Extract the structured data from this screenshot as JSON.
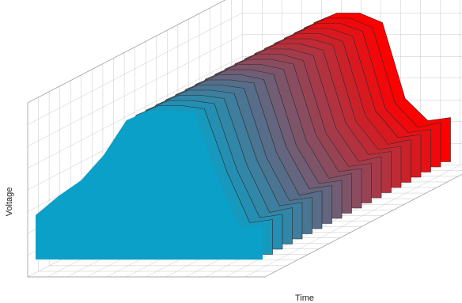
{
  "chart_data": {
    "type": "waterfall3d",
    "xlabel": "Time",
    "ylabel": "Voltage",
    "x": [
      0,
      10,
      20,
      30,
      40,
      50,
      60,
      70,
      80,
      90,
      100
    ],
    "xlim": [
      0,
      100
    ],
    "ylim": [
      0,
      5
    ],
    "series": [
      {
        "color": "#0aa0c8",
        "values": [
          1.4,
          2.0,
          2.5,
          3.3,
          4.4,
          4.7,
          4.7,
          4.65,
          2.6,
          1.0,
          1.1
        ]
      },
      {
        "color": "#1798bd",
        "values": [
          1.4,
          2.0,
          2.5,
          3.3,
          4.4,
          4.7,
          4.7,
          4.6,
          2.6,
          1.0,
          1.1
        ]
      },
      {
        "color": "#248fb3",
        "values": [
          1.4,
          2.0,
          2.5,
          3.3,
          4.4,
          4.7,
          4.7,
          4.6,
          2.5,
          1.0,
          1.1
        ]
      },
      {
        "color": "#3187a8",
        "values": [
          1.4,
          2.0,
          2.5,
          3.3,
          4.4,
          4.7,
          4.7,
          4.6,
          2.5,
          1.0,
          1.15
        ]
      },
      {
        "color": "#3e7e9e",
        "values": [
          1.4,
          2.0,
          2.5,
          3.3,
          4.4,
          4.7,
          4.7,
          4.6,
          2.5,
          1.05,
          1.15
        ]
      },
      {
        "color": "#4a7693",
        "values": [
          1.4,
          2.0,
          2.5,
          3.3,
          4.4,
          4.7,
          4.7,
          4.6,
          2.4,
          1.05,
          1.15
        ]
      },
      {
        "color": "#576d89",
        "values": [
          1.4,
          2.0,
          2.5,
          3.3,
          4.4,
          4.7,
          4.7,
          4.6,
          2.4,
          1.05,
          1.2
        ]
      },
      {
        "color": "#64657e",
        "values": [
          1.4,
          2.0,
          2.5,
          3.3,
          4.4,
          4.7,
          4.7,
          4.55,
          2.4,
          1.1,
          1.2
        ]
      },
      {
        "color": "#715d74",
        "values": [
          1.4,
          2.0,
          2.5,
          3.3,
          4.4,
          4.7,
          4.7,
          4.55,
          2.3,
          1.1,
          1.2
        ]
      },
      {
        "color": "#7e5469",
        "values": [
          1.4,
          2.0,
          2.5,
          3.3,
          4.4,
          4.7,
          4.7,
          4.55,
          2.3,
          1.1,
          1.25
        ]
      },
      {
        "color": "#8b4c5f",
        "values": [
          1.4,
          2.0,
          2.5,
          3.3,
          4.4,
          4.7,
          4.7,
          4.55,
          2.3,
          1.15,
          1.25
        ]
      },
      {
        "color": "#984354",
        "values": [
          1.4,
          2.0,
          2.5,
          3.3,
          4.4,
          4.7,
          4.7,
          4.5,
          2.2,
          1.15,
          1.25
        ]
      },
      {
        "color": "#a53b4a",
        "values": [
          1.4,
          2.0,
          2.5,
          3.3,
          4.4,
          4.7,
          4.7,
          4.5,
          2.2,
          1.15,
          1.3
        ]
      },
      {
        "color": "#b2333f",
        "values": [
          1.4,
          2.0,
          2.5,
          3.3,
          4.4,
          4.7,
          4.7,
          4.5,
          2.2,
          1.2,
          1.3
        ]
      },
      {
        "color": "#bf2a35",
        "values": [
          1.4,
          2.0,
          2.5,
          3.3,
          4.4,
          4.7,
          4.7,
          4.5,
          2.1,
          1.2,
          1.3
        ]
      },
      {
        "color": "#cb222a",
        "values": [
          1.4,
          2.0,
          2.5,
          3.3,
          4.4,
          4.7,
          4.7,
          4.45,
          2.1,
          1.2,
          1.35
        ]
      },
      {
        "color": "#d81920",
        "values": [
          1.4,
          2.0,
          2.5,
          3.3,
          4.4,
          4.7,
          4.7,
          4.45,
          2.1,
          1.25,
          1.35
        ]
      },
      {
        "color": "#e51115",
        "values": [
          1.4,
          2.0,
          2.5,
          3.3,
          4.4,
          4.7,
          4.7,
          4.45,
          2.0,
          1.25,
          1.35
        ]
      },
      {
        "color": "#f2080b",
        "values": [
          1.4,
          2.0,
          2.5,
          3.3,
          4.4,
          4.7,
          4.7,
          4.4,
          2.0,
          1.25,
          1.4
        ]
      },
      {
        "color": "#ff0000",
        "values": [
          1.4,
          2.0,
          2.5,
          3.3,
          4.4,
          4.7,
          4.7,
          4.4,
          2.0,
          1.3,
          1.4
        ]
      }
    ]
  }
}
